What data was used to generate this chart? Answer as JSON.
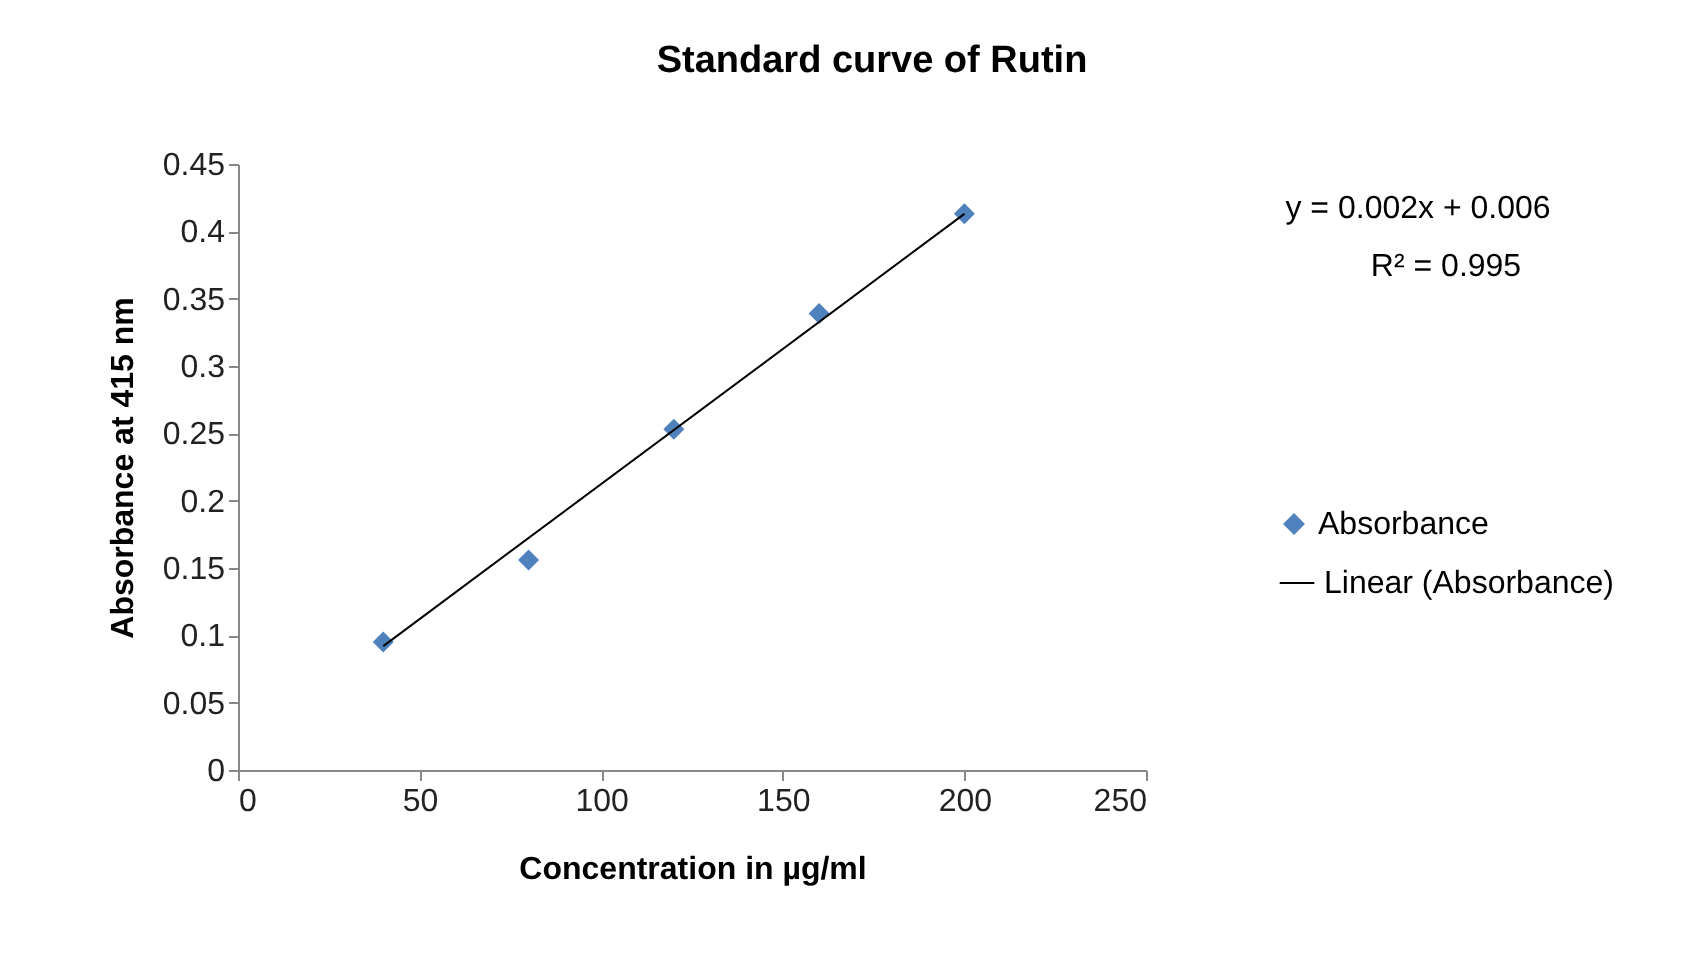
{
  "chart_data": {
    "type": "scatter",
    "title": "Standard curve of Rutin",
    "xlabel": "Concentration in µg/ml",
    "ylabel": "Absorbance at 415 nm",
    "annotations": [
      "y = 0.002x + 0.006",
      "R² = 0.995"
    ],
    "x": [
      40,
      80,
      120,
      160,
      200
    ],
    "series": [
      {
        "name": "Absorbance",
        "type": "scatter",
        "marker": "diamond",
        "color": "#4f81bd",
        "values": [
          0.095,
          0.156,
          0.253,
          0.339,
          0.413
        ]
      },
      {
        "name": "Linear (Absorbance)",
        "type": "line",
        "color": "#000000",
        "x": [
          40,
          200
        ],
        "values": [
          0.092,
          0.413
        ],
        "line_style": "solid"
      }
    ],
    "xlim": [
      0,
      250
    ],
    "xticks": [
      0,
      50,
      100,
      150,
      200,
      250
    ],
    "ylim": [
      0,
      0.45
    ],
    "yticks": [
      0,
      0.05,
      0.1,
      0.15,
      0.2,
      0.25,
      0.3,
      0.35,
      0.4,
      0.45
    ],
    "grid": false,
    "legend": "right"
  }
}
